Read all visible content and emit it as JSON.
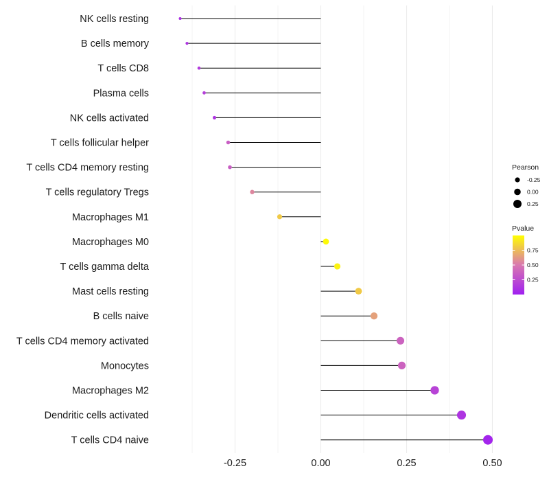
{
  "chart_data": {
    "type": "lollipop",
    "categories": [
      "NK cells resting",
      "B cells memory",
      "T cells CD8",
      "Plasma cells",
      "NK cells activated",
      "T cells follicular helper",
      "T cells CD4 memory resting",
      "T cells regulatory  Tregs",
      "Macrophages M1",
      "Macrophages M0",
      "T cells gamma delta",
      "Mast cells resting",
      "B cells naive",
      "T cells CD4 memory activated",
      "Monocytes",
      "Macrophages M2",
      "Dendritic cells activated",
      "T cells CD4 naive"
    ],
    "values": [
      -0.41,
      -0.39,
      -0.355,
      -0.34,
      -0.31,
      -0.27,
      -0.265,
      -0.2,
      -0.12,
      0.015,
      0.048,
      0.11,
      0.155,
      0.232,
      0.236,
      0.332,
      0.41,
      0.487
    ],
    "pvalues": [
      0.1,
      0.12,
      0.15,
      0.18,
      0.12,
      0.35,
      0.35,
      0.55,
      0.8,
      0.98,
      0.95,
      0.8,
      0.65,
      0.38,
      0.38,
      0.2,
      0.12,
      0.03
    ],
    "xlim": [
      -0.465,
      0.535
    ],
    "xticks": [
      -0.25,
      0.0,
      0.25,
      0.5
    ],
    "xtick_labels": [
      "-0.25",
      "0.00",
      "0.25",
      "0.50"
    ],
    "title": "",
    "xlabel": "",
    "ylabel": "",
    "grid": true,
    "legend_position": "right",
    "legend": {
      "size": {
        "title": "Pearson",
        "labels": [
          "-0.25",
          "0.00",
          "0.25"
        ],
        "values": [
          -0.25,
          0.0,
          0.25
        ]
      },
      "color": {
        "title": "Pvalue",
        "labels": [
          "0.75",
          "0.50",
          "0.25"
        ],
        "values": [
          0.75,
          0.5,
          0.25
        ],
        "range": [
          0.0,
          1.0
        ],
        "low_color": "#a020f0",
        "mid_color": "#d978b0",
        "high_color": "#ffff00"
      }
    },
    "line_color": "#000000",
    "grid_color": "#ebebeb"
  }
}
